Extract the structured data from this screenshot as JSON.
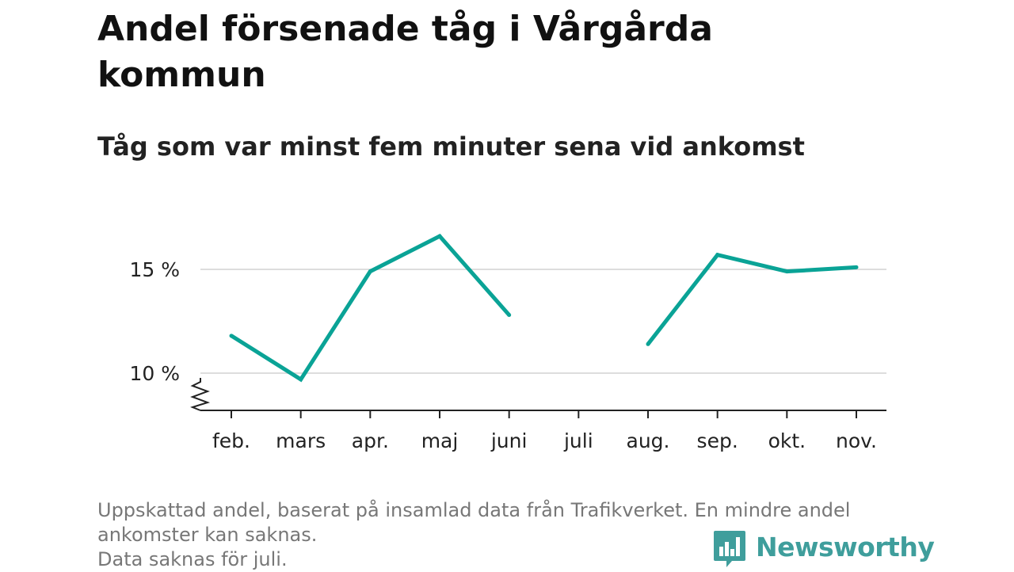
{
  "title": "Andel försenade tåg i Vårgårda kommun",
  "subtitle": "Tåg som var minst fem minuter sena vid ankomst",
  "footnote": {
    "line1": "Uppskattad andel, baserat på insamlad data från Trafikverket. En mindre andel",
    "line2": "ankomster kan saknas.",
    "line3": "Data saknas för juli."
  },
  "brand": {
    "name": "Newsworthy",
    "icon": "newsworthy-logo-icon"
  },
  "colors": {
    "line": "#0aa396",
    "grid": "#dddddd",
    "axis": "#222222",
    "brand": "#3f9e9c"
  },
  "chart_data": {
    "type": "line",
    "categories": [
      "feb.",
      "mars",
      "apr.",
      "maj",
      "juni",
      "juli",
      "aug.",
      "sep.",
      "okt.",
      "nov."
    ],
    "series": [
      {
        "values": [
          11.8,
          9.7,
          14.9,
          16.6,
          12.8,
          null,
          11.4,
          15.7,
          14.9,
          15.1
        ]
      }
    ],
    "ylim": [
      8,
      17
    ],
    "yticks": [
      10,
      15
    ],
    "ytick_labels": [
      "10 %",
      "15 %"
    ],
    "y_axis_break": true,
    "grid": true,
    "xlabel": "",
    "ylabel": ""
  }
}
